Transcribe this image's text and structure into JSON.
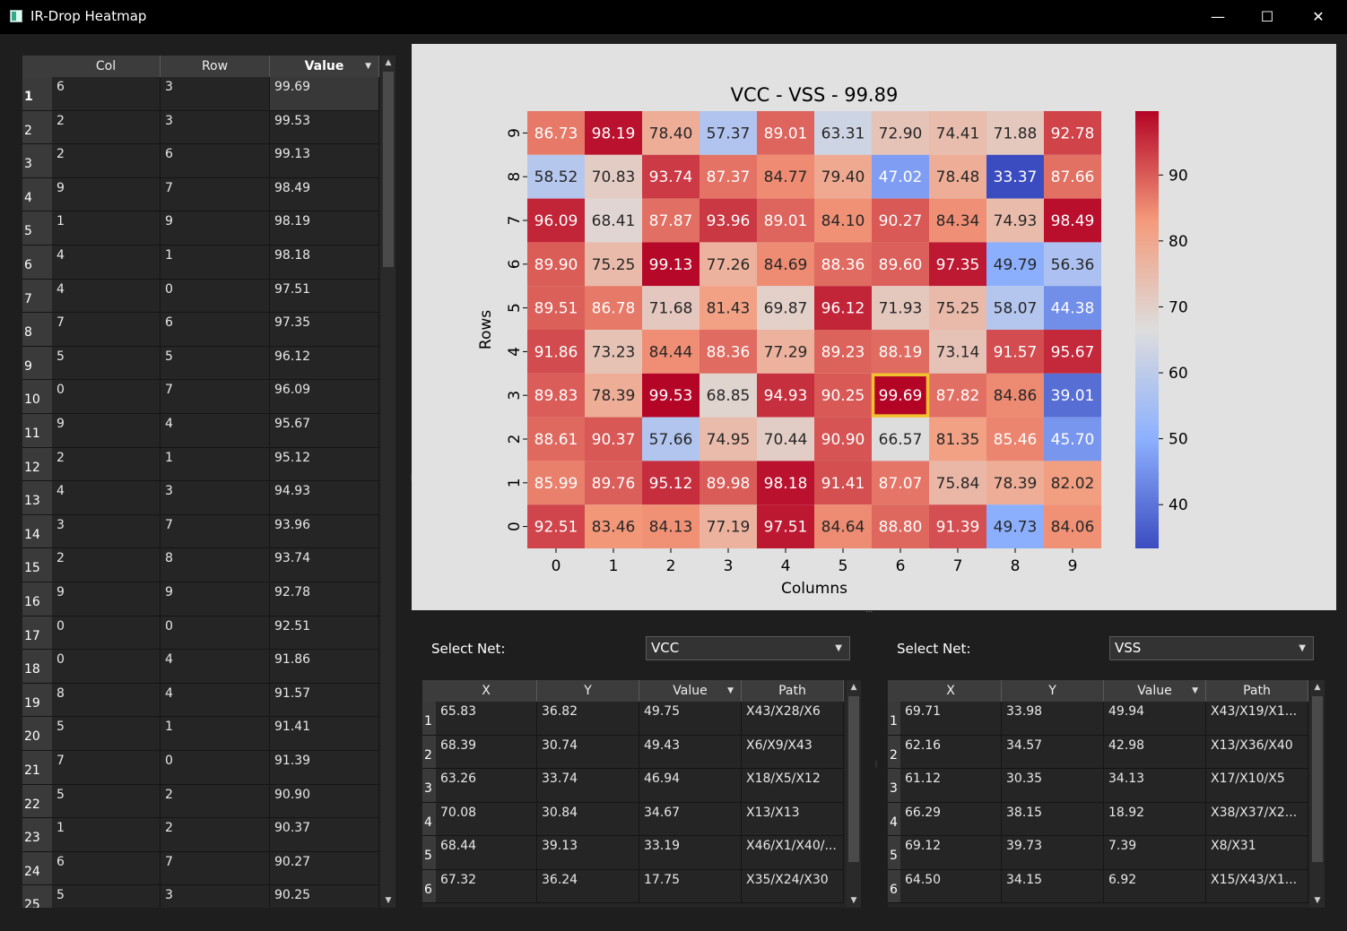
{
  "window": {
    "title": "IR-Drop Heatmap",
    "minimize": "—",
    "maximize": "☐",
    "close": "✕"
  },
  "main_table": {
    "columns": [
      "Col",
      "Row",
      "Value"
    ],
    "rows": [
      [
        "1",
        "6",
        "3",
        "99.69"
      ],
      [
        "2",
        "2",
        "3",
        "99.53"
      ],
      [
        "3",
        "2",
        "6",
        "99.13"
      ],
      [
        "4",
        "9",
        "7",
        "98.49"
      ],
      [
        "5",
        "1",
        "9",
        "98.19"
      ],
      [
        "6",
        "4",
        "1",
        "98.18"
      ],
      [
        "7",
        "4",
        "0",
        "97.51"
      ],
      [
        "8",
        "7",
        "6",
        "97.35"
      ],
      [
        "9",
        "5",
        "5",
        "96.12"
      ],
      [
        "10",
        "0",
        "7",
        "96.09"
      ],
      [
        "11",
        "9",
        "4",
        "95.67"
      ],
      [
        "12",
        "2",
        "1",
        "95.12"
      ],
      [
        "13",
        "4",
        "3",
        "94.93"
      ],
      [
        "14",
        "3",
        "7",
        "93.96"
      ],
      [
        "15",
        "2",
        "8",
        "93.74"
      ],
      [
        "16",
        "9",
        "9",
        "92.78"
      ],
      [
        "17",
        "0",
        "0",
        "92.51"
      ],
      [
        "18",
        "0",
        "4",
        "91.86"
      ],
      [
        "19",
        "8",
        "4",
        "91.57"
      ],
      [
        "20",
        "5",
        "1",
        "91.41"
      ],
      [
        "21",
        "7",
        "0",
        "91.39"
      ],
      [
        "22",
        "5",
        "2",
        "90.90"
      ],
      [
        "23",
        "1",
        "2",
        "90.37"
      ],
      [
        "24",
        "6",
        "7",
        "90.27"
      ],
      [
        "25",
        "5",
        "3",
        "90.25"
      ]
    ]
  },
  "chart_data": {
    "type": "heatmap",
    "title": "VCC - VSS - 99.89",
    "xlabel": "Columns",
    "ylabel": "Rows",
    "x": [
      "0",
      "1",
      "2",
      "3",
      "4",
      "5",
      "6",
      "7",
      "8",
      "9"
    ],
    "y": [
      "9",
      "8",
      "7",
      "6",
      "5",
      "4",
      "3",
      "2",
      "1",
      "0"
    ],
    "values": [
      [
        86.73,
        98.19,
        78.4,
        57.37,
        89.01,
        63.31,
        72.9,
        74.41,
        71.88,
        92.78
      ],
      [
        58.52,
        70.83,
        93.74,
        87.37,
        84.77,
        79.4,
        47.02,
        78.48,
        33.37,
        87.66
      ],
      [
        96.09,
        68.41,
        87.87,
        93.96,
        89.01,
        84.1,
        90.27,
        84.34,
        74.93,
        98.49
      ],
      [
        89.9,
        75.25,
        99.13,
        77.26,
        84.69,
        88.36,
        89.6,
        97.35,
        49.79,
        56.36
      ],
      [
        89.51,
        86.78,
        71.68,
        81.43,
        69.87,
        96.12,
        71.93,
        75.25,
        58.07,
        44.38
      ],
      [
        91.86,
        73.23,
        84.44,
        88.36,
        77.29,
        89.23,
        88.19,
        73.14,
        91.57,
        95.67
      ],
      [
        89.83,
        78.39,
        99.53,
        68.85,
        94.93,
        90.25,
        99.69,
        87.82,
        84.86,
        39.01
      ],
      [
        88.61,
        90.37,
        57.66,
        74.95,
        70.44,
        90.9,
        66.57,
        81.35,
        85.46,
        45.7
      ],
      [
        85.99,
        89.76,
        95.12,
        89.98,
        98.18,
        91.41,
        87.07,
        75.84,
        78.39,
        82.02
      ],
      [
        92.51,
        83.46,
        84.13,
        77.19,
        97.51,
        84.64,
        88.8,
        91.39,
        49.73,
        84.06
      ]
    ],
    "highlight": {
      "row": "3",
      "col": "6",
      "value": 99.69,
      "color": "#f2c12e"
    },
    "colorbar": {
      "min": 33.37,
      "max": 99.69,
      "ticks": [
        "40",
        "50",
        "60",
        "70",
        "80",
        "90"
      ],
      "colormap": "coolwarm"
    }
  },
  "left_net": {
    "label": "Select Net:",
    "selected": "VCC",
    "table": {
      "columns": [
        "X",
        "Y",
        "Value",
        "Path"
      ],
      "rows": [
        [
          "1",
          "65.83",
          "36.82",
          "49.75",
          "X43/X28/X6"
        ],
        [
          "2",
          "68.39",
          "30.74",
          "49.43",
          "X6/X9/X43"
        ],
        [
          "3",
          "63.26",
          "33.74",
          "46.94",
          "X18/X5/X12"
        ],
        [
          "4",
          "70.08",
          "30.84",
          "34.67",
          "X13/X13"
        ],
        [
          "5",
          "68.44",
          "39.13",
          "33.19",
          "X46/X1/X40/..."
        ],
        [
          "6",
          "67.32",
          "36.24",
          "17.75",
          "X35/X24/X30"
        ]
      ]
    }
  },
  "right_net": {
    "label": "Select Net:",
    "selected": "VSS",
    "table": {
      "columns": [
        "X",
        "Y",
        "Value",
        "Path"
      ],
      "rows": [
        [
          "1",
          "69.71",
          "33.98",
          "49.94",
          "X43/X19/X1..."
        ],
        [
          "2",
          "62.16",
          "34.57",
          "42.98",
          "X13/X36/X40"
        ],
        [
          "3",
          "61.12",
          "30.35",
          "34.13",
          "X17/X10/X5"
        ],
        [
          "4",
          "66.29",
          "38.15",
          "18.92",
          "X38/X37/X2..."
        ],
        [
          "5",
          "69.12",
          "39.73",
          "7.39",
          "X8/X31"
        ],
        [
          "6",
          "64.50",
          "34.15",
          "6.92",
          "X15/X43/X1..."
        ]
      ]
    }
  }
}
